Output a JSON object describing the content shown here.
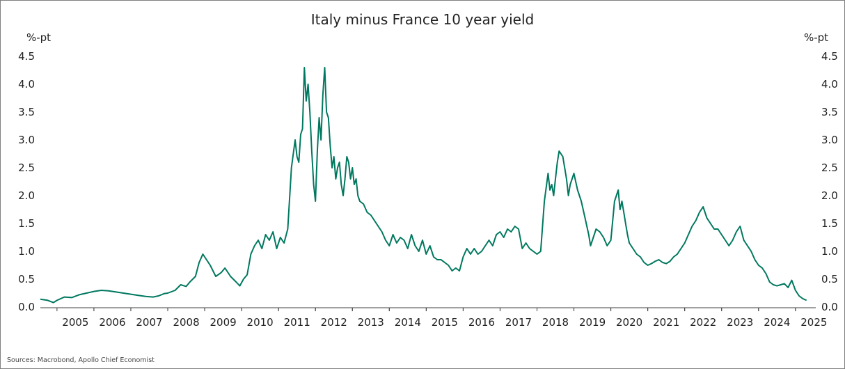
{
  "chart_data": {
    "type": "line",
    "title": "Italy minus France 10 year yield",
    "ylabel_left": "%-pt",
    "ylabel_right": "%-pt",
    "ylim": [
      0.0,
      4.5
    ],
    "xlim": [
      2004.55,
      2025.55
    ],
    "y_ticks": [
      "0.0",
      "0.5",
      "1.0",
      "1.5",
      "2.0",
      "2.5",
      "3.0",
      "3.5",
      "4.0",
      "4.5"
    ],
    "x_ticks": [
      "2005",
      "2006",
      "2007",
      "2008",
      "2009",
      "2010",
      "2011",
      "2012",
      "2013",
      "2014",
      "2015",
      "2016",
      "2017",
      "2018",
      "2019",
      "2020",
      "2021",
      "2022",
      "2023",
      "2024",
      "2025"
    ],
    "grid": false,
    "line_color": "#00785f",
    "series": [
      {
        "name": "Italy minus France 10 year yield",
        "x": [
          2004.55,
          2004.75,
          2004.9,
          2005.0,
          2005.2,
          2005.4,
          2005.6,
          2005.8,
          2006.0,
          2006.2,
          2006.4,
          2006.6,
          2006.8,
          2007.0,
          2007.2,
          2007.4,
          2007.6,
          2007.75,
          2007.9,
          2008.0,
          2008.2,
          2008.35,
          2008.5,
          2008.6,
          2008.75,
          2008.85,
          2008.95,
          2009.05,
          2009.15,
          2009.3,
          2009.45,
          2009.55,
          2009.7,
          2009.85,
          2009.95,
          2010.05,
          2010.15,
          2010.25,
          2010.35,
          2010.45,
          2010.55,
          2010.65,
          2010.75,
          2010.85,
          2010.95,
          2011.05,
          2011.15,
          2011.25,
          2011.35,
          2011.45,
          2011.5,
          2011.55,
          2011.6,
          2011.65,
          2011.7,
          2011.75,
          2011.8,
          2011.85,
          2011.9,
          2011.95,
          2012.0,
          2012.05,
          2012.1,
          2012.15,
          2012.2,
          2012.25,
          2012.3,
          2012.35,
          2012.4,
          2012.45,
          2012.5,
          2012.55,
          2012.6,
          2012.65,
          2012.7,
          2012.75,
          2012.8,
          2012.85,
          2012.9,
          2012.95,
          2013.0,
          2013.05,
          2013.1,
          2013.15,
          2013.2,
          2013.3,
          2013.4,
          2013.5,
          2013.6,
          2013.7,
          2013.8,
          2013.9,
          2014.0,
          2014.1,
          2014.2,
          2014.3,
          2014.4,
          2014.5,
          2014.6,
          2014.7,
          2014.8,
          2014.9,
          2015.0,
          2015.1,
          2015.2,
          2015.3,
          2015.4,
          2015.5,
          2015.6,
          2015.7,
          2015.8,
          2015.9,
          2016.0,
          2016.1,
          2016.2,
          2016.3,
          2016.4,
          2016.5,
          2016.6,
          2016.7,
          2016.8,
          2016.9,
          2017.0,
          2017.1,
          2017.2,
          2017.3,
          2017.4,
          2017.5,
          2017.6,
          2017.7,
          2017.8,
          2017.9,
          2018.0,
          2018.1,
          2018.2,
          2018.3,
          2018.35,
          2018.4,
          2018.45,
          2018.5,
          2018.55,
          2018.6,
          2018.7,
          2018.8,
          2018.85,
          2018.9,
          2018.95,
          2019.0,
          2019.1,
          2019.2,
          2019.3,
          2019.4,
          2019.45,
          2019.5,
          2019.6,
          2019.7,
          2019.8,
          2019.9,
          2020.0,
          2020.1,
          2020.2,
          2020.25,
          2020.3,
          2020.35,
          2020.4,
          2020.45,
          2020.5,
          2020.6,
          2020.7,
          2020.8,
          2020.9,
          2021.0,
          2021.1,
          2021.2,
          2021.3,
          2021.4,
          2021.5,
          2021.6,
          2021.7,
          2021.8,
          2021.9,
          2022.0,
          2022.1,
          2022.2,
          2022.3,
          2022.4,
          2022.5,
          2022.6,
          2022.7,
          2022.8,
          2022.9,
          2023.0,
          2023.1,
          2023.2,
          2023.3,
          2023.4,
          2023.5,
          2023.6,
          2023.7,
          2023.8,
          2023.9,
          2024.0,
          2024.1,
          2024.2,
          2024.3,
          2024.4,
          2024.5,
          2024.6,
          2024.7,
          2024.8,
          2024.9,
          2025.0,
          2025.1,
          2025.2,
          2025.3
        ],
        "values": [
          0.14,
          0.12,
          0.08,
          0.12,
          0.18,
          0.17,
          0.22,
          0.25,
          0.28,
          0.3,
          0.29,
          0.27,
          0.25,
          0.23,
          0.21,
          0.19,
          0.18,
          0.2,
          0.24,
          0.25,
          0.3,
          0.4,
          0.37,
          0.45,
          0.55,
          0.8,
          0.95,
          0.85,
          0.75,
          0.55,
          0.62,
          0.7,
          0.55,
          0.45,
          0.38,
          0.5,
          0.58,
          0.95,
          1.1,
          1.2,
          1.05,
          1.3,
          1.2,
          1.35,
          1.05,
          1.25,
          1.15,
          1.4,
          2.5,
          3.0,
          2.7,
          2.6,
          3.1,
          3.2,
          4.3,
          3.7,
          4.0,
          3.5,
          2.8,
          2.2,
          1.9,
          2.8,
          3.4,
          3.0,
          3.8,
          4.3,
          3.5,
          3.4,
          2.9,
          2.5,
          2.7,
          2.3,
          2.5,
          2.6,
          2.2,
          2.0,
          2.3,
          2.7,
          2.6,
          2.3,
          2.5,
          2.2,
          2.3,
          2.0,
          1.9,
          1.85,
          1.7,
          1.65,
          1.55,
          1.45,
          1.35,
          1.2,
          1.1,
          1.3,
          1.15,
          1.25,
          1.2,
          1.05,
          1.3,
          1.1,
          1.0,
          1.2,
          0.95,
          1.1,
          0.9,
          0.85,
          0.85,
          0.8,
          0.75,
          0.65,
          0.7,
          0.65,
          0.9,
          1.05,
          0.95,
          1.05,
          0.95,
          1.0,
          1.1,
          1.2,
          1.1,
          1.3,
          1.35,
          1.25,
          1.4,
          1.35,
          1.45,
          1.4,
          1.05,
          1.15,
          1.05,
          1.0,
          0.95,
          1.0,
          1.9,
          2.4,
          2.1,
          2.2,
          2.0,
          2.3,
          2.6,
          2.8,
          2.7,
          2.3,
          2.0,
          2.2,
          2.3,
          2.4,
          2.1,
          1.9,
          1.6,
          1.3,
          1.1,
          1.2,
          1.4,
          1.35,
          1.25,
          1.1,
          1.2,
          1.9,
          2.1,
          1.75,
          1.9,
          1.7,
          1.5,
          1.3,
          1.15,
          1.05,
          0.95,
          0.9,
          0.8,
          0.75,
          0.78,
          0.82,
          0.85,
          0.8,
          0.78,
          0.82,
          0.9,
          0.95,
          1.05,
          1.15,
          1.3,
          1.45,
          1.55,
          1.7,
          1.8,
          1.6,
          1.5,
          1.4,
          1.4,
          1.3,
          1.2,
          1.1,
          1.2,
          1.35,
          1.45,
          1.2,
          1.1,
          1.0,
          0.85,
          0.75,
          0.7,
          0.6,
          0.45,
          0.4,
          0.38,
          0.4,
          0.42,
          0.35,
          0.48,
          0.3,
          0.2,
          0.15,
          0.12
        ]
      }
    ]
  },
  "source": "Sources: Macrobond, Apollo Chief Economist"
}
